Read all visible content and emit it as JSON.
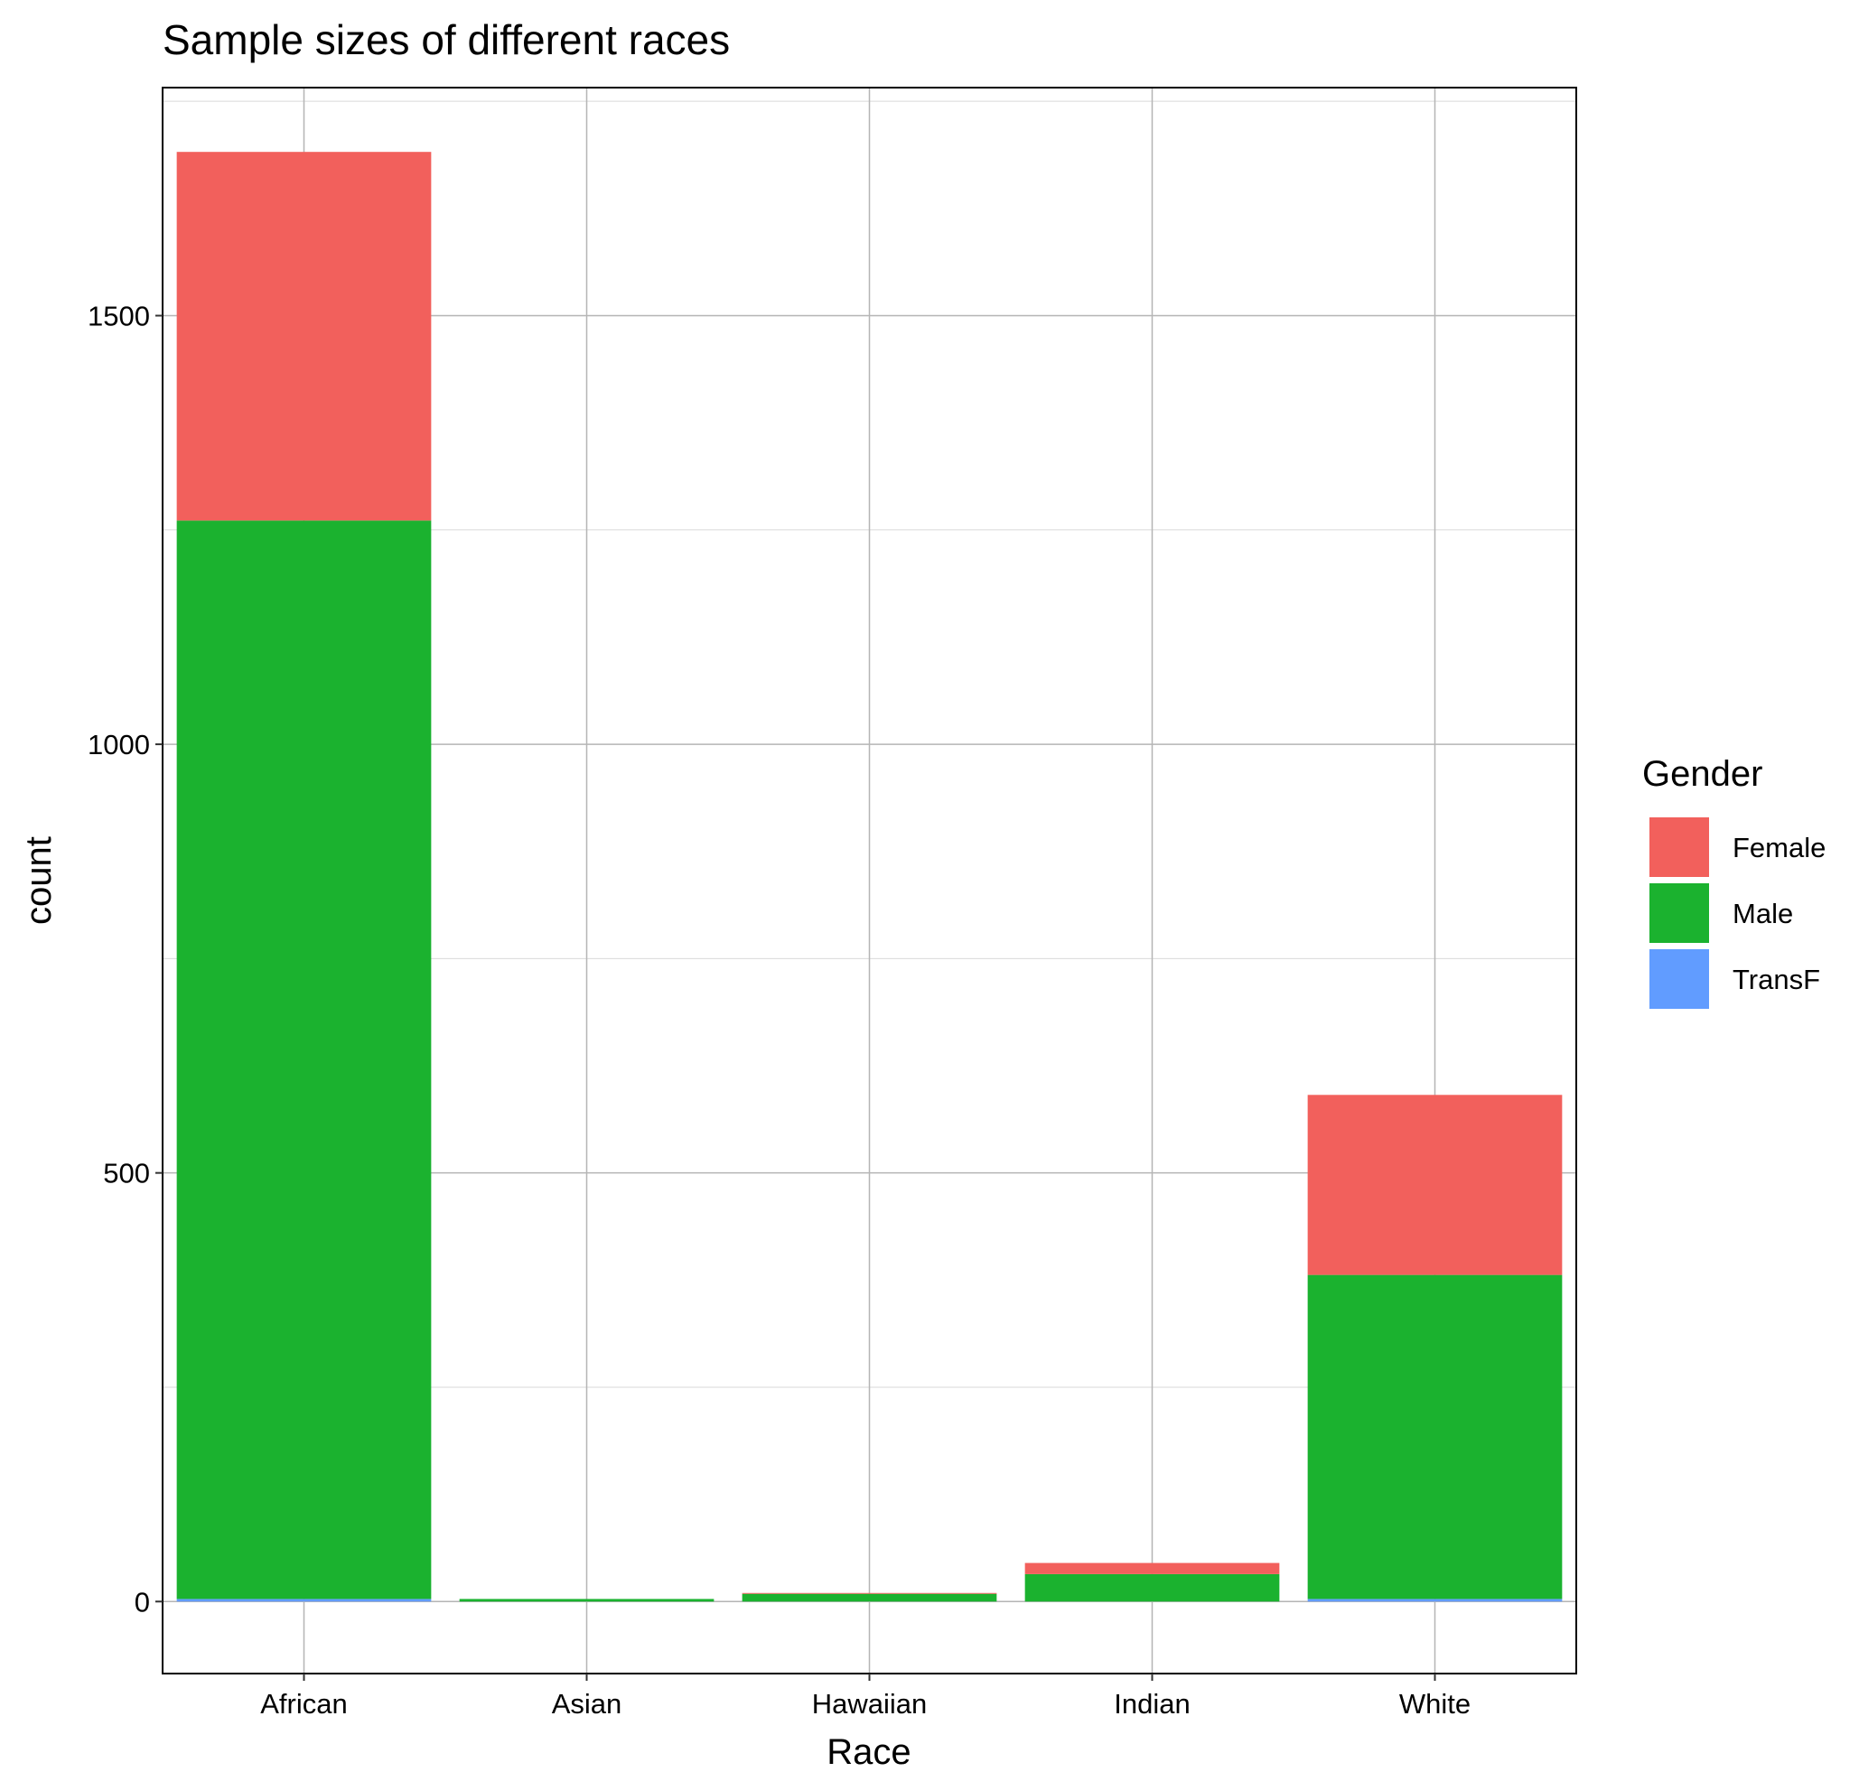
{
  "chart_data": {
    "type": "bar",
    "stacked": true,
    "title": "Sample sizes of different races",
    "xlabel": "Race",
    "ylabel": "count",
    "categories": [
      "African",
      "Asian",
      "Hawaiian",
      "Indian",
      "White"
    ],
    "series": [
      {
        "name": "TransF",
        "color": "#619CFF",
        "values": [
          3,
          0,
          0,
          0,
          3
        ]
      },
      {
        "name": "Male",
        "color": "#1BB22F",
        "values": [
          1258,
          3,
          9,
          32,
          378
        ]
      },
      {
        "name": "Female",
        "color": "#F2605C",
        "values": [
          430,
          0,
          1,
          13,
          210
        ]
      }
    ],
    "yticks": [
      0,
      500,
      1000,
      1500
    ],
    "ylim": [
      -84,
      1766
    ],
    "grid": true,
    "legend": {
      "title": "Gender",
      "position": "right",
      "entries": [
        "Female",
        "Male",
        "TransF"
      ]
    }
  }
}
